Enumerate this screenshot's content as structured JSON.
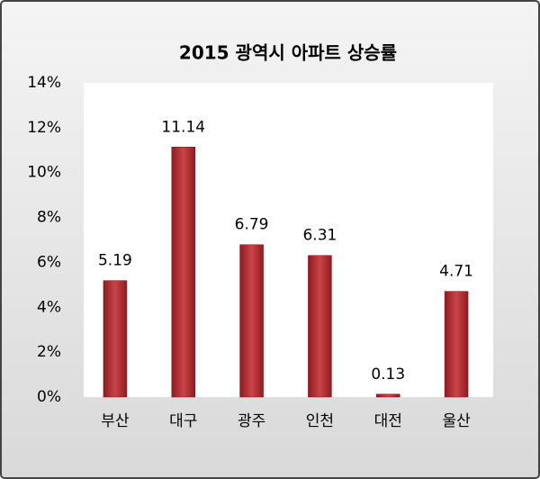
{
  "chart_data": {
    "type": "bar",
    "title": "2015 광역시 아파트 상승률",
    "categories": [
      "부산",
      "대구",
      "광주",
      "인천",
      "대전",
      "울산"
    ],
    "values": [
      5.19,
      11.14,
      6.79,
      6.31,
      0.13,
      4.71
    ],
    "color": "#b83236",
    "ylim": [
      0,
      14
    ],
    "yticks": [
      {
        "value": 0,
        "label": "0%"
      },
      {
        "value": 2,
        "label": "2%"
      },
      {
        "value": 4,
        "label": "4%"
      },
      {
        "value": 6,
        "label": "6%"
      },
      {
        "value": 8,
        "label": "8%"
      },
      {
        "value": 10,
        "label": "10%"
      },
      {
        "value": 12,
        "label": "12%"
      },
      {
        "value": 14,
        "label": "14%"
      }
    ],
    "grid": false
  }
}
